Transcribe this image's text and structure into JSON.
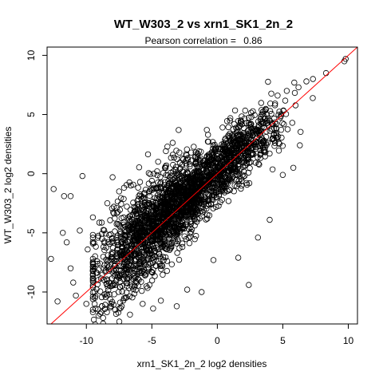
{
  "chart_data": {
    "type": "scatter",
    "title": "WT_W303_2 vs xrn1_SK1_2n_2",
    "subtitle_label": "Pearson correlation =",
    "pearson_correlation": "0.86",
    "xlabel": "xrn1_SK1_2n_2 log2 densities",
    "ylabel": "WT_W303_2 log2 densities",
    "xlim": [
      -13,
      10.7
    ],
    "ylim": [
      -12.7,
      10.7
    ],
    "xticks": [
      -10,
      -5,
      0,
      5,
      10
    ],
    "yticks": [
      -10,
      -5,
      0,
      5,
      10
    ],
    "xtick_labels": [
      "-10",
      "-5",
      "0",
      "5",
      "10"
    ],
    "ytick_labels": [
      "-10",
      "-5",
      "0",
      "5",
      "10"
    ],
    "reference_line": {
      "slope": 1,
      "intercept": 0,
      "color": "#ff0000"
    },
    "point_color": "#000000",
    "outlier_points": [
      {
        "x": -12.7,
        "y": -7.2
      },
      {
        "x": -12.2,
        "y": -10.8
      },
      {
        "x": -11.8,
        "y": -5.0
      },
      {
        "x": -11.7,
        "y": -1.9
      },
      {
        "x": -12.5,
        "y": -1.3
      },
      {
        "x": -11.2,
        "y": -1.9
      },
      {
        "x": -10.3,
        "y": -0.2
      },
      {
        "x": -11.0,
        "y": -9.2
      },
      {
        "x": -11.5,
        "y": -5.8
      },
      {
        "x": -10.8,
        "y": -10.3
      },
      {
        "x": -11.2,
        "y": -8.0
      },
      {
        "x": -10.5,
        "y": -4.8
      },
      {
        "x": -8.8,
        "y": -11.2
      },
      {
        "x": -9.3,
        "y": -11.4
      },
      {
        "x": -10.0,
        "y": -11.0
      },
      {
        "x": -7.8,
        "y": -11.5
      },
      {
        "x": -7.3,
        "y": -11.2
      },
      {
        "x": -8.4,
        "y": -2.5
      },
      {
        "x": -7.5,
        "y": -1.5
      },
      {
        "x": -6.6,
        "y": -1.0
      },
      {
        "x": -8.0,
        "y": -0.3
      },
      {
        "x": -5.9,
        "y": -0.7
      },
      {
        "x": -4.6,
        "y": 0.2
      },
      {
        "x": -3.9,
        "y": 0.7
      },
      {
        "x": -2.6,
        "y": 1.2
      },
      {
        "x": -0.8,
        "y": 3.7
      },
      {
        "x": 0.4,
        "y": 3.9
      },
      {
        "x": 1.3,
        "y": 4.2
      },
      {
        "x": 2.6,
        "y": 4.8
      },
      {
        "x": 3.6,
        "y": 5.3
      },
      {
        "x": 4.6,
        "y": 6.6
      },
      {
        "x": 5.3,
        "y": 7.0
      },
      {
        "x": 6.2,
        "y": 7.3
      },
      {
        "x": 6.8,
        "y": 7.8
      },
      {
        "x": 7.3,
        "y": 8.0
      },
      {
        "x": 8.3,
        "y": 8.5
      },
      {
        "x": 9.7,
        "y": 9.5
      },
      {
        "x": 9.8,
        "y": 9.7
      },
      {
        "x": 5.0,
        "y": -0.1
      },
      {
        "x": 5.8,
        "y": 0.5
      },
      {
        "x": 6.3,
        "y": 2.4
      },
      {
        "x": 4.7,
        "y": 2.6
      },
      {
        "x": 2.4,
        "y": -9.4
      },
      {
        "x": 1.6,
        "y": -7.1
      },
      {
        "x": -0.3,
        "y": -7.3
      },
      {
        "x": -1.2,
        "y": -10.0
      },
      {
        "x": -3.1,
        "y": -11.2
      },
      {
        "x": -4.9,
        "y": -11.4
      },
      {
        "x": -5.7,
        "y": -11.0
      },
      {
        "x": -2.3,
        "y": -9.8
      },
      {
        "x": 3.1,
        "y": -5.4
      },
      {
        "x": 4.0,
        "y": -3.9
      },
      {
        "x": -9.5,
        "y": -9.6
      },
      {
        "x": -9.9,
        "y": -6.4
      }
    ]
  }
}
